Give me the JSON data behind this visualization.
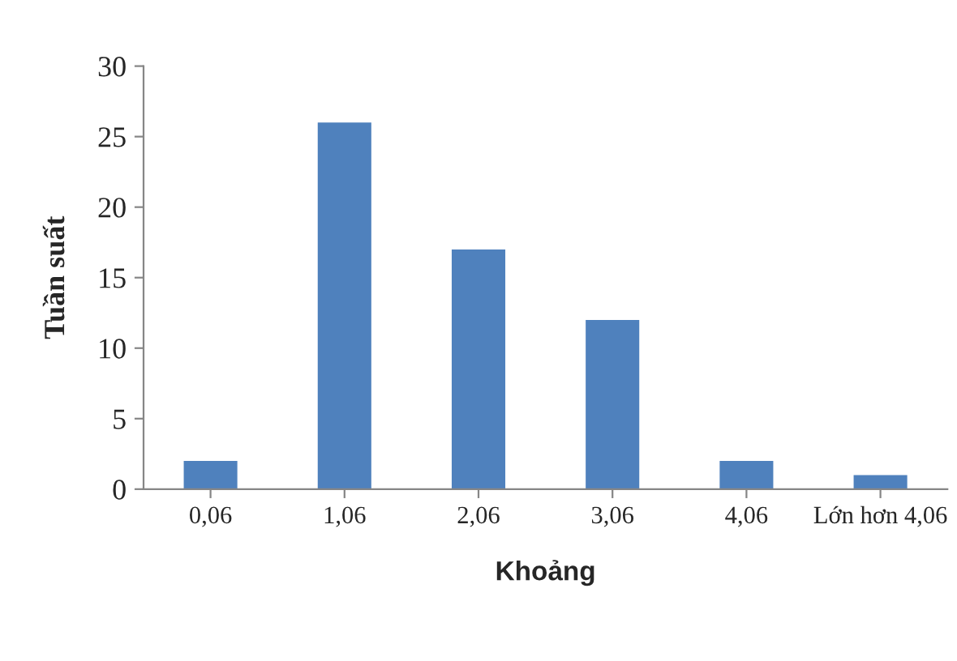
{
  "chart_data": {
    "type": "bar",
    "xlabel": "Khoảng",
    "ylabel": "Tuần suất",
    "categories": [
      "0,06",
      "1,06",
      "2,06",
      "3,06",
      "4,06",
      "Lớn hơn 4,06"
    ],
    "values": [
      2,
      26,
      17,
      12,
      2,
      1
    ],
    "color": "#4f81bd",
    "ylim": [
      0,
      30
    ],
    "yticks": [
      0,
      5,
      10,
      15,
      20,
      25,
      30
    ],
    "grid": false,
    "legend": false
  }
}
